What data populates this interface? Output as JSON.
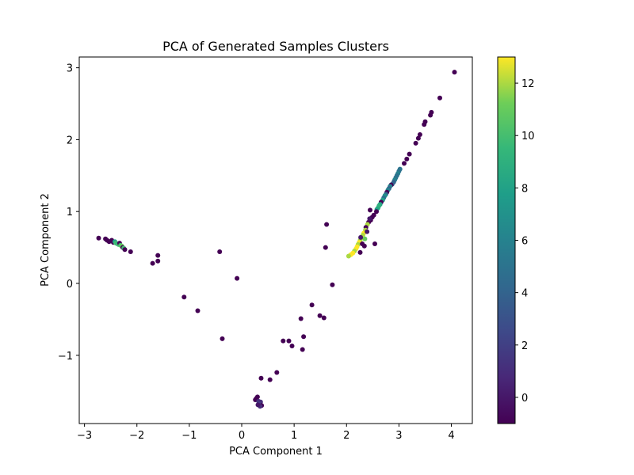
{
  "chart_data": {
    "type": "scatter",
    "title": "PCA of Generated Samples Clusters",
    "xlabel": "PCA Component 1",
    "ylabel": "PCA Component 2",
    "xlim": [
      -3.1,
      4.4
    ],
    "ylim": [
      -1.95,
      3.15
    ],
    "xticks": [
      -3,
      -2,
      -1,
      0,
      1,
      2,
      3,
      4
    ],
    "yticks": [
      -1,
      0,
      1,
      2,
      3
    ],
    "xtick_labels": [
      "−3",
      "−2",
      "−1",
      "0",
      "1",
      "2",
      "3",
      "4"
    ],
    "ytick_labels": [
      "−1",
      "0",
      "1",
      "2",
      "3"
    ],
    "grid": false,
    "colormap": "viridis",
    "color_by": "cluster label",
    "colorbar": {
      "range": [
        -1,
        13
      ],
      "ticks": [
        0,
        2,
        4,
        6,
        8,
        10,
        12
      ],
      "tick_labels": [
        "0",
        "2",
        "4",
        "6",
        "8",
        "10",
        "12"
      ]
    },
    "points": [
      {
        "x": 4.06,
        "y": 2.94,
        "c": -1
      },
      {
        "x": 3.78,
        "y": 2.58,
        "c": -1
      },
      {
        "x": 3.62,
        "y": 2.38,
        "c": -1
      },
      {
        "x": 3.6,
        "y": 2.34,
        "c": -1
      },
      {
        "x": 3.5,
        "y": 2.25,
        "c": -1
      },
      {
        "x": 3.48,
        "y": 2.21,
        "c": -1
      },
      {
        "x": 3.4,
        "y": 2.07,
        "c": -1
      },
      {
        "x": 3.37,
        "y": 2.02,
        "c": -1
      },
      {
        "x": 3.32,
        "y": 1.95,
        "c": -1
      },
      {
        "x": 3.2,
        "y": 1.8,
        "c": -1
      },
      {
        "x": 3.15,
        "y": 1.73,
        "c": -1
      },
      {
        "x": 3.1,
        "y": 1.67,
        "c": -1
      },
      {
        "x": 3.02,
        "y": 1.59,
        "c": 5
      },
      {
        "x": 3.0,
        "y": 1.56,
        "c": 5
      },
      {
        "x": 2.98,
        "y": 1.53,
        "c": 6
      },
      {
        "x": 2.96,
        "y": 1.5,
        "c": 5
      },
      {
        "x": 2.94,
        "y": 1.47,
        "c": 5
      },
      {
        "x": 2.92,
        "y": 1.44,
        "c": 6
      },
      {
        "x": 2.9,
        "y": 1.41,
        "c": 4
      },
      {
        "x": 2.87,
        "y": 1.38,
        "c": 4
      },
      {
        "x": 2.85,
        "y": 1.37,
        "c": -1
      },
      {
        "x": 2.83,
        "y": 1.35,
        "c": 6
      },
      {
        "x": 2.81,
        "y": 1.32,
        "c": 4
      },
      {
        "x": 2.79,
        "y": 1.3,
        "c": 6
      },
      {
        "x": 2.77,
        "y": 1.27,
        "c": -1
      },
      {
        "x": 2.75,
        "y": 1.24,
        "c": 4
      },
      {
        "x": 2.73,
        "y": 1.22,
        "c": 7
      },
      {
        "x": 2.71,
        "y": 1.19,
        "c": 5
      },
      {
        "x": 2.69,
        "y": 1.16,
        "c": 8
      },
      {
        "x": 2.66,
        "y": 1.13,
        "c": -1
      },
      {
        "x": 2.64,
        "y": 1.1,
        "c": 8
      },
      {
        "x": 2.62,
        "y": 1.08,
        "c": 9
      },
      {
        "x": 2.6,
        "y": 1.05,
        "c": 9
      },
      {
        "x": 2.58,
        "y": 1.03,
        "c": 8
      },
      {
        "x": 2.57,
        "y": 1.0,
        "c": -1
      },
      {
        "x": 2.52,
        "y": 0.95,
        "c": -1
      },
      {
        "x": 2.49,
        "y": 0.92,
        "c": -1
      },
      {
        "x": 2.46,
        "y": 0.88,
        "c": -1
      },
      {
        "x": 2.45,
        "y": 1.02,
        "c": -1
      },
      {
        "x": 2.42,
        "y": 0.85,
        "c": -1
      },
      {
        "x": 2.4,
        "y": 0.82,
        "c": 12
      },
      {
        "x": 2.37,
        "y": 0.78,
        "c": -1
      },
      {
        "x": 2.36,
        "y": 0.74,
        "c": 12
      },
      {
        "x": 2.33,
        "y": 0.7,
        "c": 13
      },
      {
        "x": 2.31,
        "y": 0.67,
        "c": 12
      },
      {
        "x": 2.28,
        "y": 0.63,
        "c": 13
      },
      {
        "x": 2.26,
        "y": 0.6,
        "c": 12
      },
      {
        "x": 2.24,
        "y": 0.57,
        "c": 13
      },
      {
        "x": 2.22,
        "y": 0.54,
        "c": 12
      },
      {
        "x": 2.2,
        "y": 0.51,
        "c": 13
      },
      {
        "x": 2.18,
        "y": 0.48,
        "c": 13
      },
      {
        "x": 2.15,
        "y": 0.45,
        "c": 12
      },
      {
        "x": 2.12,
        "y": 0.42,
        "c": 13
      },
      {
        "x": 2.08,
        "y": 0.4,
        "c": 13
      },
      {
        "x": 2.04,
        "y": 0.38,
        "c": 12
      },
      {
        "x": 2.3,
        "y": 0.55,
        "c": -1
      },
      {
        "x": 2.34,
        "y": 0.52,
        "c": -1
      },
      {
        "x": 2.26,
        "y": 0.43,
        "c": -1
      },
      {
        "x": 2.35,
        "y": 0.62,
        "c": 11
      },
      {
        "x": 2.27,
        "y": 0.64,
        "c": 0
      },
      {
        "x": 2.39,
        "y": 0.72,
        "c": 0
      },
      {
        "x": 2.44,
        "y": 0.9,
        "c": 0
      },
      {
        "x": 2.54,
        "y": 0.55,
        "c": -1
      },
      {
        "x": 1.62,
        "y": 0.82,
        "c": -1
      },
      {
        "x": 1.6,
        "y": 0.5,
        "c": -1
      },
      {
        "x": 1.73,
        "y": -0.02,
        "c": -1
      },
      {
        "x": -2.73,
        "y": 0.63,
        "c": -1
      },
      {
        "x": -2.6,
        "y": 0.62,
        "c": -1
      },
      {
        "x": -2.57,
        "y": 0.6,
        "c": -1
      },
      {
        "x": -2.53,
        "y": 0.58,
        "c": -1
      },
      {
        "x": -2.48,
        "y": 0.6,
        "c": -1
      },
      {
        "x": -2.45,
        "y": 0.57,
        "c": -1
      },
      {
        "x": -2.42,
        "y": 0.58,
        "c": 8
      },
      {
        "x": -2.4,
        "y": 0.56,
        "c": 10
      },
      {
        "x": -2.37,
        "y": 0.55,
        "c": 9
      },
      {
        "x": -2.35,
        "y": 0.54,
        "c": 10
      },
      {
        "x": -2.33,
        "y": 0.56,
        "c": -1
      },
      {
        "x": -2.31,
        "y": 0.53,
        "c": 10
      },
      {
        "x": -2.29,
        "y": 0.52,
        "c": 11
      },
      {
        "x": -2.27,
        "y": 0.5,
        "c": -1
      },
      {
        "x": -2.25,
        "y": 0.49,
        "c": 10
      },
      {
        "x": -2.23,
        "y": 0.47,
        "c": -1
      },
      {
        "x": -2.12,
        "y": 0.44,
        "c": -1
      },
      {
        "x": -1.6,
        "y": 0.39,
        "c": -1
      },
      {
        "x": -1.6,
        "y": 0.31,
        "c": -1
      },
      {
        "x": -1.7,
        "y": 0.28,
        "c": -1
      },
      {
        "x": -0.42,
        "y": 0.44,
        "c": -1
      },
      {
        "x": -0.09,
        "y": 0.07,
        "c": -1
      },
      {
        "x": -1.1,
        "y": -0.19,
        "c": -1
      },
      {
        "x": -0.84,
        "y": -0.38,
        "c": -1
      },
      {
        "x": -0.37,
        "y": -0.77,
        "c": -1
      },
      {
        "x": 0.37,
        "y": -1.32,
        "c": -1
      },
      {
        "x": 0.54,
        "y": -1.34,
        "c": -1
      },
      {
        "x": 0.67,
        "y": -1.24,
        "c": -1
      },
      {
        "x": 0.28,
        "y": -1.6,
        "c": -1
      },
      {
        "x": 0.26,
        "y": -1.62,
        "c": -1
      },
      {
        "x": 0.3,
        "y": -1.58,
        "c": -1
      },
      {
        "x": 0.32,
        "y": -1.64,
        "c": 1
      },
      {
        "x": 0.34,
        "y": -1.66,
        "c": 2
      },
      {
        "x": 0.36,
        "y": -1.65,
        "c": 1
      },
      {
        "x": 0.33,
        "y": -1.68,
        "c": 2
      },
      {
        "x": 0.38,
        "y": -1.7,
        "c": -1
      },
      {
        "x": 0.35,
        "y": -1.71,
        "c": 1
      },
      {
        "x": 0.31,
        "y": -1.69,
        "c": 0
      },
      {
        "x": 0.79,
        "y": -0.8,
        "c": -1
      },
      {
        "x": 0.9,
        "y": -0.8,
        "c": -1
      },
      {
        "x": 0.96,
        "y": -0.87,
        "c": -1
      },
      {
        "x": 1.13,
        "y": -0.49,
        "c": -1
      },
      {
        "x": 1.16,
        "y": -0.92,
        "c": -1
      },
      {
        "x": 1.18,
        "y": -0.74,
        "c": -1
      },
      {
        "x": 1.34,
        "y": -0.3,
        "c": -1
      },
      {
        "x": 1.49,
        "y": -0.45,
        "c": -1
      },
      {
        "x": 1.57,
        "y": -0.48,
        "c": -1
      }
    ]
  }
}
